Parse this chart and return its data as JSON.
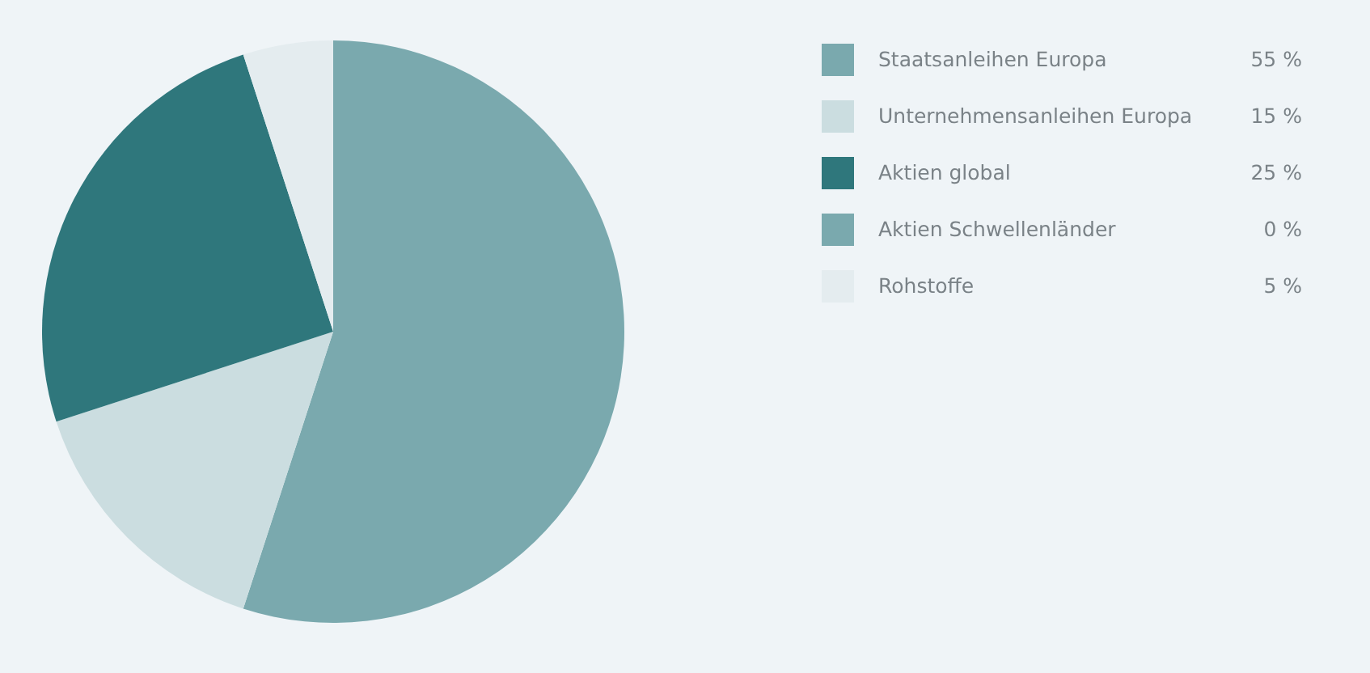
{
  "chart_data": {
    "type": "pie",
    "categories": [
      "Staatsanleihen Europa",
      "Unternehmensanleihen Europa",
      "Aktien global",
      "Aktien Schwellenländer",
      "Rohstoffe"
    ],
    "values": [
      55,
      15,
      25,
      0,
      5
    ],
    "value_labels": [
      "55 %",
      "15 %",
      "25 %",
      "0 %",
      "5 %"
    ],
    "colors": [
      "#7aa9ae",
      "#cbdde0",
      "#2f777c",
      "#7aa9ae",
      "#e4ecef"
    ],
    "legend": "top right"
  }
}
